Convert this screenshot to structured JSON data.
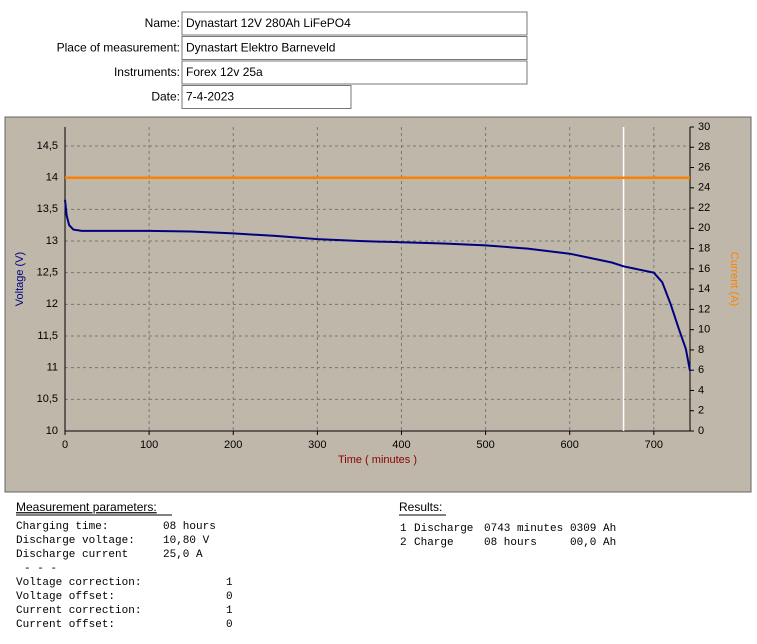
{
  "form": [
    {
      "label": "Name:",
      "value": "Dynastart 12V 280Ah LiFePO4"
    },
    {
      "label": "Place of measurement:",
      "value": "Dynastart Elektro Barneveld"
    },
    {
      "label": "Instruments:",
      "value": "Forex 12v 25a"
    },
    {
      "label": "Date:",
      "value": "7-4-2023"
    }
  ],
  "chart_data": {
    "type": "line",
    "xlabel": "Time ( minutes )",
    "ylabel": "Voltage (V)",
    "y2label": "Current (A)",
    "xlim": [
      0,
      743
    ],
    "xticks": [
      0,
      100,
      200,
      300,
      400,
      500,
      600,
      700
    ],
    "ylim": [
      10,
      14.8
    ],
    "yticks": [
      10,
      {
        "value": 10.5,
        "label": "10,5"
      },
      11,
      {
        "value": 11.5,
        "label": "11,5"
      },
      12,
      {
        "value": 12.5,
        "label": "12,5"
      },
      13,
      {
        "value": 13.5,
        "label": "13,5"
      },
      14,
      {
        "value": 14.5,
        "label": "14,5"
      }
    ],
    "y2lim": [
      0,
      30
    ],
    "y2ticks": [
      0,
      2,
      4,
      6,
      8,
      10,
      12,
      14,
      16,
      18,
      20,
      22,
      24,
      26,
      28,
      30
    ],
    "grid": true,
    "cursor": 664,
    "series": [
      {
        "name": "Voltage",
        "color": "#000080",
        "x": [
          0,
          2,
          5,
          10,
          20,
          50,
          100,
          150,
          200,
          250,
          300,
          350,
          400,
          450,
          500,
          550,
          600,
          650,
          664,
          700,
          710,
          720,
          730,
          738,
          743
        ],
        "values": [
          13.65,
          13.4,
          13.25,
          13.18,
          13.16,
          13.16,
          13.16,
          13.15,
          13.12,
          13.08,
          13.03,
          13.0,
          12.98,
          12.96,
          12.93,
          12.88,
          12.8,
          12.66,
          12.6,
          12.5,
          12.35,
          12.0,
          11.6,
          11.3,
          10.95
        ]
      },
      {
        "name": "Current",
        "color": "#ff8000",
        "axis": "y2",
        "x": [
          0,
          743
        ],
        "values": [
          25,
          25
        ]
      }
    ]
  },
  "parameters": {
    "title": "Measurement parameters:",
    "rows": [
      {
        "label": "Charging time:",
        "value": "08 hours"
      },
      {
        "label": "Discharge voltage:",
        "value": "10,80 V"
      },
      {
        "label": "Discharge current",
        "value": "25,0 A"
      },
      {
        "label": "- - -",
        "value": null
      },
      {
        "label": "Voltage correction:",
        "value": "1"
      },
      {
        "label": "Voltage offset:",
        "value": "0"
      },
      {
        "label": "Current correction:",
        "value": "1"
      },
      {
        "label": "Current offset:",
        "value": "0"
      }
    ]
  },
  "results": {
    "title": "Results:",
    "rows": [
      [
        "1",
        "Discharge",
        "0743 minutes",
        "0309 Ah"
      ],
      [
        "2",
        "Charge",
        "08 hours",
        "00,0 Ah"
      ]
    ]
  }
}
